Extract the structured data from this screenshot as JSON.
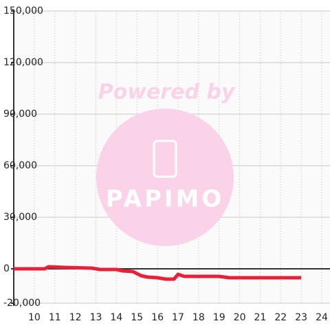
{
  "chart_data": {
    "type": "line",
    "watermark": {
      "line1": "Powered by",
      "line2": "PAPIMO"
    },
    "x": [
      9,
      10.5,
      10.7,
      11.5,
      12.8,
      13.2,
      14,
      14.3,
      14.8,
      15.2,
      15.5,
      16,
      16.4,
      16.8,
      17,
      17.3,
      19,
      19.5,
      23
    ],
    "series": [
      {
        "color": "#e8213a",
        "values": [
          0,
          0,
          1200,
          800,
          400,
          -400,
          -400,
          -1200,
          -1600,
          -4000,
          -4800,
          -5200,
          -6000,
          -6000,
          -3200,
          -4400,
          -4400,
          -5200,
          -5200
        ]
      }
    ],
    "xlim": [
      9,
      24.4
    ],
    "xticks": [
      10,
      11,
      12,
      13,
      14,
      15,
      16,
      17,
      18,
      19,
      20,
      21,
      22,
      23,
      24
    ],
    "ylim": [
      -20000,
      150000
    ],
    "yticks": [
      {
        "value": -20000,
        "label": "-20,000"
      },
      0,
      {
        "value": 30000,
        "label": "30,000"
      },
      {
        "value": 60000,
        "label": "60,000"
      },
      {
        "value": 90000,
        "label": "90,000"
      },
      {
        "value": 120000,
        "label": "120,000"
      },
      {
        "value": 150000,
        "label": "150,000"
      }
    ],
    "grid": true
  }
}
